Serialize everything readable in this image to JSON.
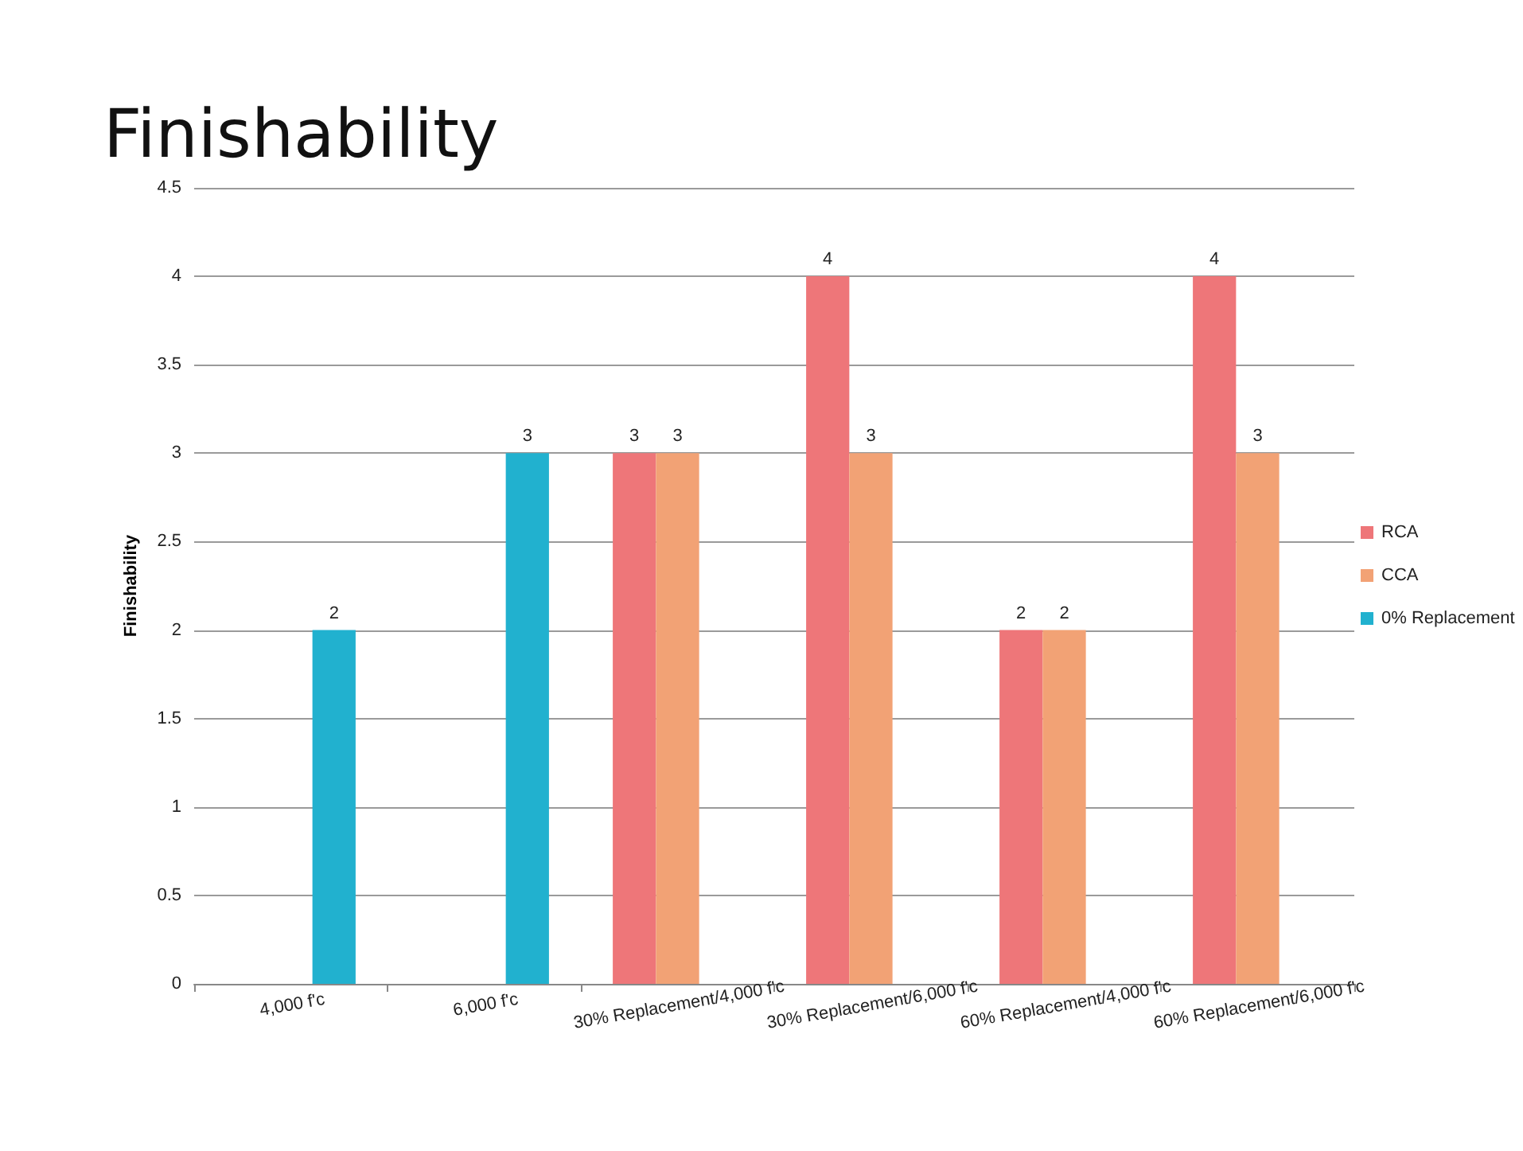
{
  "chart_data": {
    "type": "bar",
    "title": "Finishability",
    "ylabel": "Finishability",
    "categories": [
      "4,000 f'c",
      "6,000 f'c",
      "30% Replacement/4,000 f'c",
      "30% Replacement/6,000 f'c",
      "60% Replacement/4,000 f'c",
      "60% Replacement/6,000 f'c"
    ],
    "series": [
      {
        "name": "RCA",
        "color": "#ee7679",
        "values": [
          null,
          null,
          3,
          4,
          2,
          4
        ]
      },
      {
        "name": "CCA",
        "color": "#f2a275",
        "values": [
          null,
          null,
          3,
          3,
          2,
          3
        ]
      },
      {
        "name": "0% Replacement",
        "color": "#21b1cf",
        "values": [
          2,
          3,
          null,
          null,
          null,
          null
        ]
      }
    ],
    "ylim": [
      0,
      4.5
    ],
    "yticks": [
      0,
      0.5,
      1,
      1.5,
      2,
      2.5,
      3,
      3.5,
      4,
      4.5
    ],
    "grid": "y",
    "legend": "right",
    "data_labels": true
  }
}
